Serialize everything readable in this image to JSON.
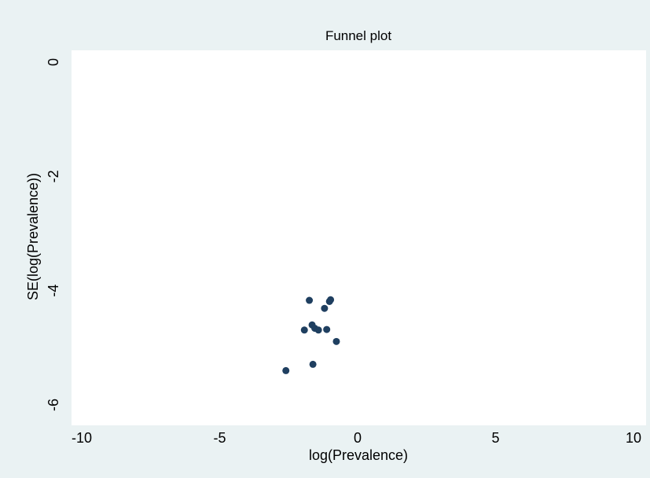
{
  "chart_data": {
    "type": "scatter",
    "title": "Funnel plot",
    "xlabel": "log(Prevalence)",
    "ylabel": "SE(log(Prevalence))",
    "xlim": [
      -10,
      10
    ],
    "ylim": [
      -6,
      0
    ],
    "xticks": [
      -10,
      -5,
      0,
      5,
      10
    ],
    "yticks": [
      0,
      -2,
      -4,
      -6
    ],
    "xtick_labels": [
      "-10",
      "-5",
      "0",
      "5",
      "10"
    ],
    "ytick_labels": [
      "0",
      "-2",
      "-4",
      "-6"
    ],
    "grid": false,
    "series": [
      {
        "color": "#1f3f60",
        "points": [
          {
            "x": -1.75,
            "y": -4.17
          },
          {
            "x": -1.02,
            "y": -4.19
          },
          {
            "x": -0.98,
            "y": -4.16
          },
          {
            "x": -1.2,
            "y": -4.31
          },
          {
            "x": -1.65,
            "y": -4.6
          },
          {
            "x": -1.55,
            "y": -4.66
          },
          {
            "x": -1.42,
            "y": -4.69
          },
          {
            "x": -1.12,
            "y": -4.68
          },
          {
            "x": -1.93,
            "y": -4.69
          },
          {
            "x": -0.77,
            "y": -4.89
          },
          {
            "x": -1.62,
            "y": -5.29
          },
          {
            "x": -2.6,
            "y": -5.4
          }
        ]
      }
    ]
  },
  "colors": {
    "background": "#eaf2f3",
    "plot_area": "#ffffff",
    "marker": "#1f3f60"
  }
}
